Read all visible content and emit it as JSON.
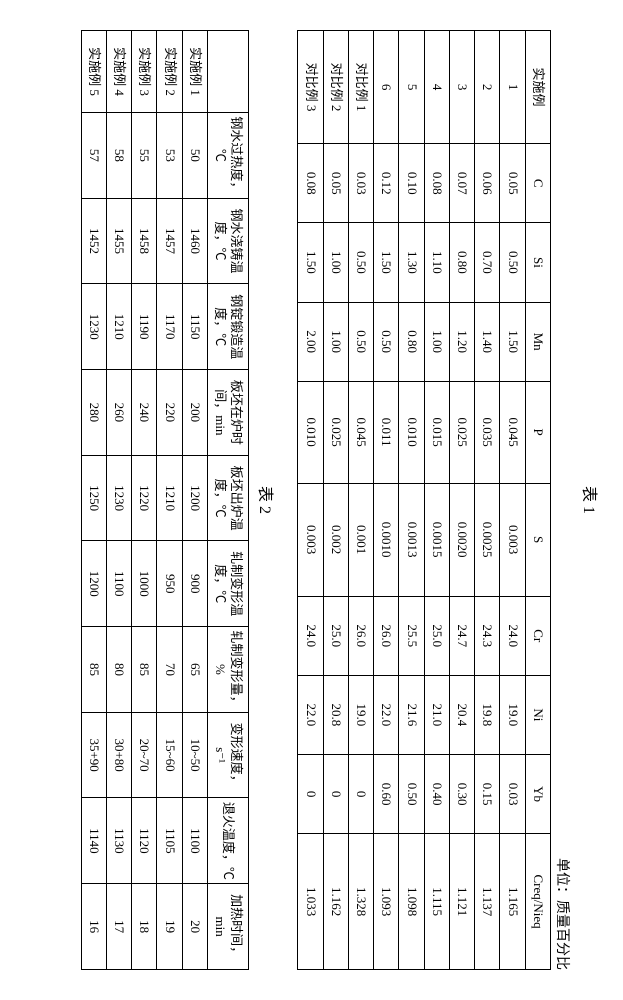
{
  "colors": {
    "border": "#000000",
    "bg": "#ffffff",
    "text": "#000000"
  },
  "table1": {
    "caption": "表 1",
    "unit": "单位：质量百分比",
    "headers": [
      "实施例",
      "C",
      "Si",
      "Mn",
      "P",
      "S",
      "Cr",
      "Ni",
      "Yb",
      "Creq/Nieq"
    ],
    "rows": [
      [
        "1",
        "0.05",
        "0.50",
        "1.50",
        "0.045",
        "0.003",
        "24.0",
        "19.0",
        "0.03",
        "1.165"
      ],
      [
        "2",
        "0.06",
        "0.70",
        "1.40",
        "0.035",
        "0.0025",
        "24.3",
        "19.8",
        "0.15",
        "1.137"
      ],
      [
        "3",
        "0.07",
        "0.80",
        "1.20",
        "0.025",
        "0.0020",
        "24.7",
        "20.4",
        "0.30",
        "1.121"
      ],
      [
        "4",
        "0.08",
        "1.10",
        "1.00",
        "0.015",
        "0.0015",
        "25.0",
        "21.0",
        "0.40",
        "1.115"
      ],
      [
        "5",
        "0.10",
        "1.30",
        "0.80",
        "0.010",
        "0.0013",
        "25.5",
        "21.6",
        "0.50",
        "1.098"
      ],
      [
        "6",
        "0.12",
        "1.50",
        "0.50",
        "0.011",
        "0.0010",
        "26.0",
        "22.0",
        "0.60",
        "1.093"
      ],
      [
        "对比例 1",
        "0.03",
        "0.50",
        "0.50",
        "0.045",
        "0.001",
        "26.0",
        "19.0",
        "0",
        "1.328"
      ],
      [
        "对比例 2",
        "0.05",
        "1.00",
        "1.00",
        "0.025",
        "0.002",
        "25.0",
        "20.8",
        "0",
        "1.162"
      ],
      [
        "对比例 3",
        "0.08",
        "1.50",
        "2.00",
        "0.010",
        "0.003",
        "24.0",
        "22.0",
        "0",
        "1.033"
      ]
    ]
  },
  "table2": {
    "caption": "表 2",
    "headers": [
      "",
      "钢水过热度，℃",
      "钢水浇铸温度，℃",
      "钢锭锻造温度，℃",
      "板坯在炉时间，min",
      "板坯出炉温度，℃",
      "轧制变形温度，℃",
      "轧制变形量，%",
      "变形速度，s⁻¹",
      "退火温度，℃",
      "加热时间，min"
    ],
    "rows": [
      [
        "实施例 1",
        "50",
        "1460",
        "1150",
        "200",
        "1200",
        "900",
        "65",
        "10~50",
        "1100",
        "20"
      ],
      [
        "实施例 2",
        "53",
        "1457",
        "1170",
        "220",
        "1210",
        "950",
        "70",
        "15~60",
        "1105",
        "19"
      ],
      [
        "实施例 3",
        "55",
        "1458",
        "1190",
        "240",
        "1220",
        "1000",
        "85",
        "20~70",
        "1120",
        "18"
      ],
      [
        "实施例 4",
        "58",
        "1455",
        "1210",
        "260",
        "1230",
        "1100",
        "80",
        "30+80",
        "1130",
        "17"
      ],
      [
        "实施例 5",
        "57",
        "1452",
        "1230",
        "280",
        "1250",
        "1200",
        "85",
        "35+90",
        "1140",
        "16"
      ]
    ]
  }
}
